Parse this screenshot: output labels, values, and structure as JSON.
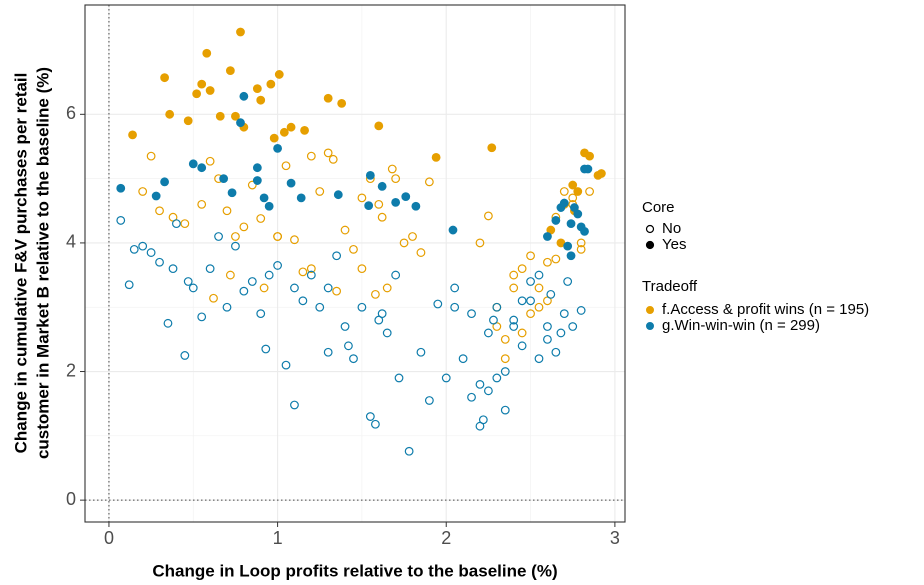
{
  "chart_data": {
    "type": "scatter",
    "x_label": "Change in Loop profits relative to the baseline (%)",
    "y_label": [
      "Change in cumulative F&V purchases per retail",
      "customer in Market B relative to the baseline (%)"
    ],
    "xlim": [
      -0.142,
      3.06
    ],
    "ylim": [
      -0.34,
      7.7
    ],
    "xticks": [
      0,
      1,
      2,
      3
    ],
    "yticks": [
      0,
      2,
      4,
      6
    ],
    "grid": true,
    "reference_lines": {
      "x": 0,
      "y": 0
    },
    "legend_core": {
      "title": "Core",
      "labels": [
        "No",
        "Yes"
      ]
    },
    "legend_title": "Tradeoff",
    "series": [
      {
        "name": "f.Access & profit wins (n = 195)",
        "color": "#E69F00",
        "no": {
          "x": [
            0.2,
            0.25,
            0.3,
            0.38,
            0.45,
            0.55,
            0.6,
            0.65,
            0.7,
            0.72,
            0.8,
            0.85,
            0.9,
            0.92,
            1.0,
            1.05,
            1.1,
            1.15,
            1.2,
            1.25,
            1.3,
            1.33,
            1.4,
            1.45,
            1.5,
            1.55,
            1.6,
            1.62,
            1.65,
            1.68,
            1.7,
            1.75,
            1.8,
            1.85,
            1.9,
            1.2,
            1.0,
            0.75,
            1.35,
            1.5,
            2.2,
            2.25,
            2.3,
            2.35,
            2.4,
            2.45,
            2.5,
            2.55,
            2.6,
            2.65,
            2.7,
            2.75,
            2.8,
            2.85,
            2.6,
            2.5,
            2.4,
            2.3,
            2.45,
            2.55,
            2.65,
            2.75,
            2.8,
            2.35,
            0.62,
            1.58
          ],
          "y": [
            4.8,
            5.35,
            4.5,
            4.4,
            4.3,
            4.6,
            5.27,
            5.0,
            4.5,
            3.5,
            4.25,
            4.9,
            4.38,
            3.3,
            4.1,
            5.2,
            4.05,
            3.55,
            5.35,
            4.8,
            5.4,
            5.3,
            4.2,
            3.9,
            4.7,
            5.0,
            4.6,
            4.4,
            3.3,
            5.15,
            5.0,
            4.0,
            4.1,
            3.85,
            4.95,
            3.6,
            4.1,
            4.1,
            3.25,
            3.6,
            4.0,
            4.42,
            3.0,
            2.2,
            3.5,
            2.6,
            3.8,
            3.3,
            3.7,
            4.4,
            4.8,
            4.7,
            4.0,
            4.8,
            3.1,
            2.9,
            3.3,
            2.7,
            3.6,
            3.0,
            3.75,
            4.6,
            3.9,
            2.5,
            3.14,
            3.2
          ]
        },
        "yes": {
          "x": [
            0.14,
            0.33,
            0.36,
            0.47,
            0.52,
            0.55,
            0.58,
            0.6,
            0.66,
            0.72,
            0.75,
            0.78,
            0.8,
            0.88,
            0.9,
            0.96,
            0.98,
            1.01,
            1.04,
            1.08,
            1.16,
            1.3,
            1.38,
            1.6,
            1.94,
            2.27,
            2.62,
            2.7,
            2.75,
            2.78,
            2.82,
            2.85,
            2.9,
            2.92,
            2.76,
            2.68
          ],
          "y": [
            5.68,
            6.57,
            6.0,
            5.9,
            6.32,
            6.47,
            6.95,
            6.37,
            5.97,
            6.68,
            5.97,
            7.28,
            5.8,
            6.4,
            6.22,
            6.47,
            5.63,
            6.62,
            5.72,
            5.8,
            5.75,
            6.25,
            6.17,
            5.82,
            5.33,
            5.48,
            4.2,
            4.6,
            4.9,
            4.8,
            5.4,
            5.35,
            5.05,
            5.08,
            4.5,
            4.0
          ]
        }
      },
      {
        "name": "g.Win-win-win (n = 299)",
        "color": "#0E7CAB",
        "no": {
          "x": [
            0.07,
            0.12,
            0.15,
            0.2,
            0.25,
            0.3,
            0.35,
            0.4,
            0.45,
            0.47,
            0.55,
            0.6,
            0.65,
            0.7,
            0.75,
            0.8,
            0.85,
            0.9,
            0.93,
            1.0,
            1.05,
            1.1,
            1.15,
            1.2,
            1.25,
            1.3,
            1.35,
            1.4,
            1.45,
            1.5,
            1.55,
            1.58,
            1.6,
            1.65,
            1.7,
            1.72,
            1.78,
            1.85,
            1.9,
            1.95,
            2.0,
            2.05,
            2.1,
            2.15,
            2.2,
            2.22,
            2.25,
            2.3,
            2.35,
            2.4,
            2.45,
            2.5,
            2.55,
            2.6,
            2.65,
            2.7,
            2.75,
            2.8,
            2.25,
            2.35,
            2.45,
            2.55,
            2.62,
            2.68,
            2.3,
            2.4,
            2.5,
            2.6,
            2.72,
            2.2,
            1.3,
            1.1,
            0.95,
            0.5,
            0.38,
            1.42,
            1.62,
            2.05,
            2.15,
            2.28
          ],
          "y": [
            4.35,
            3.35,
            3.9,
            3.95,
            3.85,
            3.7,
            2.75,
            4.3,
            2.25,
            3.4,
            2.85,
            3.6,
            4.1,
            3.0,
            3.95,
            3.25,
            3.4,
            2.9,
            2.35,
            3.65,
            2.1,
            1.48,
            3.1,
            3.5,
            3.0,
            2.3,
            3.8,
            2.7,
            2.2,
            3.0,
            1.3,
            1.18,
            2.8,
            2.6,
            3.5,
            1.9,
            0.76,
            2.3,
            1.55,
            3.05,
            1.9,
            3.3,
            2.2,
            1.6,
            1.15,
            1.25,
            2.6,
            3.0,
            2.0,
            2.7,
            3.1,
            3.4,
            3.5,
            2.5,
            2.3,
            2.9,
            2.7,
            2.95,
            1.7,
            1.4,
            2.4,
            2.2,
            3.2,
            2.6,
            1.9,
            2.8,
            3.1,
            2.7,
            3.4,
            1.8,
            3.3,
            3.3,
            3.5,
            3.3,
            3.6,
            2.4,
            2.9,
            3.0,
            2.9,
            2.8
          ]
        },
        "yes": {
          "x": [
            0.07,
            0.28,
            0.33,
            0.5,
            0.55,
            0.68,
            0.73,
            0.78,
            0.8,
            0.88,
            0.88,
            0.92,
            0.95,
            1.0,
            1.08,
            1.14,
            1.36,
            1.54,
            1.55,
            1.62,
            1.7,
            1.76,
            1.82,
            2.04,
            2.6,
            2.65,
            2.68,
            2.7,
            2.72,
            2.74,
            2.78,
            2.8,
            2.82,
            2.84,
            2.82,
            2.74,
            2.76
          ],
          "y": [
            4.85,
            4.73,
            4.95,
            5.23,
            5.17,
            5.0,
            4.78,
            5.87,
            6.28,
            4.97,
            5.17,
            4.7,
            4.57,
            5.47,
            4.93,
            4.7,
            4.75,
            4.58,
            5.05,
            4.88,
            4.63,
            4.72,
            4.57,
            4.2,
            4.1,
            4.35,
            4.55,
            4.62,
            3.95,
            4.3,
            4.45,
            4.25,
            5.15,
            5.15,
            4.18,
            3.8,
            4.55
          ]
        }
      }
    ]
  }
}
